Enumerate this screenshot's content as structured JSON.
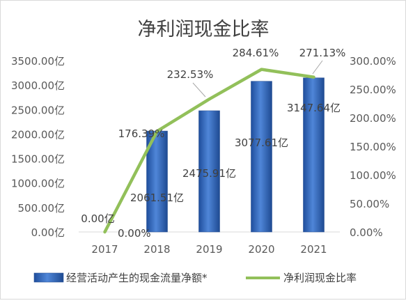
{
  "chart_data": {
    "type": "bar",
    "title": "净利润现金比率",
    "categories": [
      "2017",
      "2018",
      "2019",
      "2020",
      "2021"
    ],
    "series": [
      {
        "name": "经营活动产生的现金流量净额*",
        "type": "bar",
        "axis": "left",
        "values": [
          0.0,
          2061.51,
          2475.91,
          3077.61,
          3147.64
        ],
        "labels": [
          "0.00亿",
          "2061.51亿",
          "2475.91亿",
          "3077.61亿",
          "3147.64亿"
        ]
      },
      {
        "name": "净利润现金比率",
        "type": "line",
        "axis": "right",
        "values": [
          0.0,
          176.39,
          232.53,
          284.61,
          271.13
        ],
        "labels": [
          "0.00%",
          "176.39%",
          "232.53%",
          "284.61%",
          "271.13%"
        ]
      }
    ],
    "y_left": {
      "ylim": [
        0,
        3500
      ],
      "ticks": [
        "0.00亿",
        "500.00亿",
        "1000.00亿",
        "1500.00亿",
        "2000.00亿",
        "2500.00亿",
        "3000.00亿",
        "3500.00亿"
      ]
    },
    "y_right": {
      "ylim": [
        0,
        300
      ],
      "ticks": [
        "0.00%",
        "50.00%",
        "100.00%",
        "150.00%",
        "200.00%",
        "250.00%",
        "300.00%"
      ]
    },
    "grid": false,
    "legend": "bottom",
    "colors": {
      "bar": "#4472c4",
      "line": "#92c05a"
    }
  }
}
